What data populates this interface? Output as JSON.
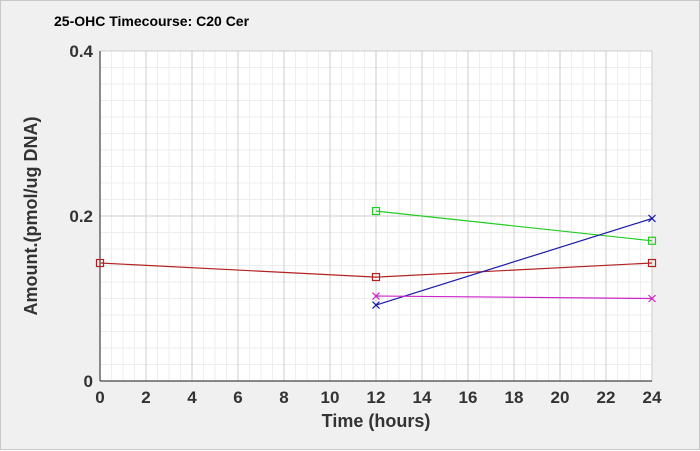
{
  "chart_data": {
    "type": "line",
    "title": "25-OHC Timecourse: C20 Cer",
    "xlabel": "Time (hours)",
    "ylabel": "Amount.(pmol/ug DNA)",
    "xlim": [
      0,
      24
    ],
    "ylim": [
      0,
      0.4
    ],
    "x_ticks": [
      "0",
      "2",
      "4",
      "6",
      "8",
      "10",
      "12",
      "14",
      "16",
      "18",
      "20",
      "22",
      "24"
    ],
    "y_ticks": [
      "0",
      "0.2",
      "0.4"
    ],
    "grid": true,
    "background": "#f0f0f0",
    "plot_background": "#ffffff",
    "series": [
      {
        "color": "#b22222",
        "marker": "square",
        "points": [
          [
            0,
            0.143
          ],
          [
            12,
            0.126
          ],
          [
            24,
            0.143
          ]
        ]
      },
      {
        "color": "#22cc22",
        "marker": "square",
        "points": [
          [
            12,
            0.206
          ],
          [
            24,
            0.17
          ]
        ]
      },
      {
        "color": "#1a1aaa",
        "marker": "x",
        "points": [
          [
            12,
            0.092
          ],
          [
            24,
            0.197
          ]
        ]
      },
      {
        "color": "#cc22cc",
        "marker": "x",
        "points": [
          [
            12,
            0.103
          ],
          [
            24,
            0.1
          ]
        ]
      }
    ]
  }
}
